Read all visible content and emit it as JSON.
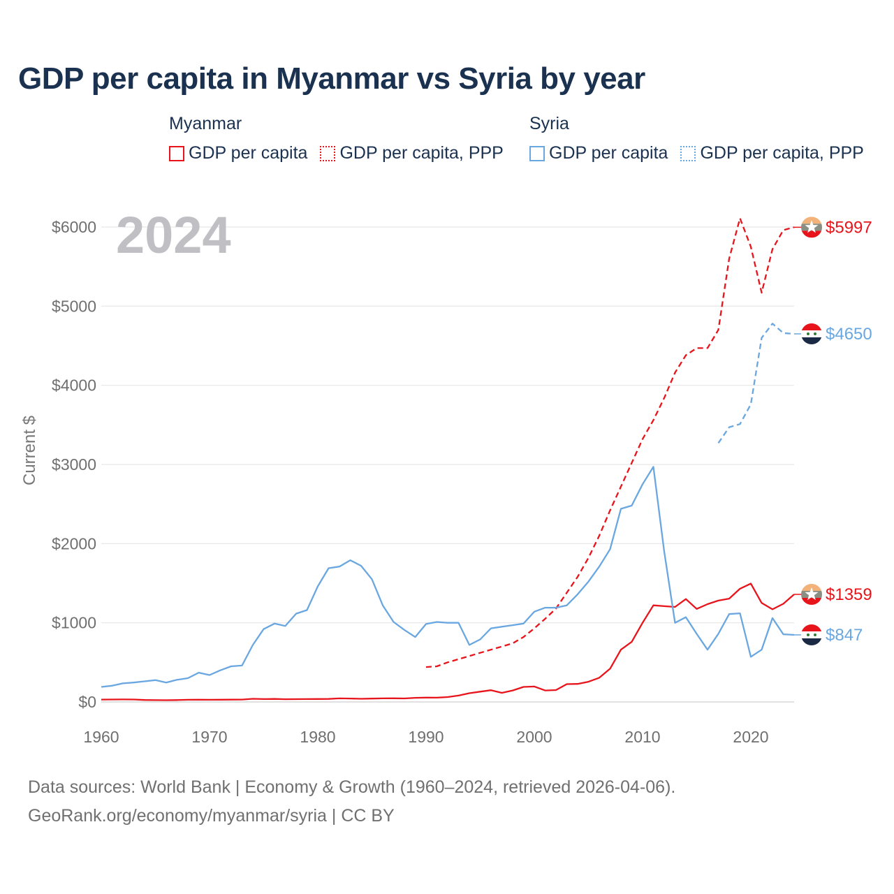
{
  "title": "GDP per capita in Myanmar vs Syria by year",
  "legend": {
    "groups": [
      {
        "name": "Myanmar",
        "items": [
          "GDP per capita",
          "GDP per capita, PPP"
        ]
      },
      {
        "name": "Syria",
        "items": [
          "GDP per capita",
          "GDP per capita, PPP"
        ]
      }
    ]
  },
  "colors": {
    "myanmar": "#e8141b",
    "syria": "#6aa7e0",
    "grid": "#e6e6e6",
    "year": "#bfbfc4"
  },
  "year_label": "2024",
  "footer": {
    "line1": "Data sources: World Bank | Economy & Growth (1960–2024, retrieved 2026-04-06).",
    "line2": "GeoRank.org/economy/myanmar/syria | CC BY"
  },
  "chart_data": {
    "type": "line",
    "ylabel": "Current $",
    "xlim": [
      1960,
      2024
    ],
    "ylim": [
      0,
      6000
    ],
    "x_ticks": [
      1960,
      1970,
      1980,
      1990,
      2000,
      2010,
      2020
    ],
    "y_ticks": [
      0,
      1000,
      2000,
      3000,
      4000,
      5000,
      6000
    ],
    "y_tick_labels": [
      "$0",
      "$1000",
      "$2000",
      "$3000",
      "$4000",
      "$5000",
      "$6000"
    ],
    "grid": true,
    "series": [
      {
        "name": "Myanmar GDP per capita",
        "country": "myanmar",
        "style": "solid",
        "x": [
          1960,
          1961,
          1962,
          1963,
          1964,
          1965,
          1966,
          1967,
          1968,
          1969,
          1970,
          1971,
          1972,
          1973,
          1974,
          1975,
          1976,
          1977,
          1978,
          1979,
          1980,
          1981,
          1982,
          1983,
          1984,
          1985,
          1986,
          1987,
          1988,
          1989,
          1990,
          1991,
          1992,
          1993,
          1994,
          1995,
          1996,
          1997,
          1998,
          1999,
          2000,
          2001,
          2002,
          2003,
          2004,
          2005,
          2006,
          2007,
          2008,
          2009,
          2010,
          2011,
          2012,
          2013,
          2014,
          2015,
          2016,
          2017,
          2018,
          2019,
          2020,
          2021,
          2022,
          2023,
          2024
        ],
        "values": [
          30,
          31,
          32,
          31,
          25,
          23,
          22,
          24,
          27,
          28,
          27,
          28,
          29,
          30,
          40,
          36,
          38,
          34,
          35,
          36,
          37,
          38,
          45,
          43,
          40,
          42,
          45,
          46,
          44,
          52,
          55,
          54,
          62,
          80,
          110,
          130,
          148,
          115,
          145,
          190,
          195,
          145,
          150,
          225,
          228,
          255,
          305,
          420,
          660,
          760,
          1000,
          1220,
          1210,
          1200,
          1300,
          1175,
          1235,
          1280,
          1305,
          1430,
          1495,
          1250,
          1170,
          1240,
          1359
        ],
        "end_label": "$1359"
      },
      {
        "name": "Myanmar GDP per capita, PPP",
        "country": "myanmar",
        "style": "dashed",
        "x": [
          1990,
          1991,
          1992,
          1993,
          1994,
          1995,
          1996,
          1997,
          1998,
          1999,
          2000,
          2001,
          2002,
          2003,
          2004,
          2005,
          2006,
          2007,
          2008,
          2009,
          2010,
          2011,
          2012,
          2013,
          2014,
          2015,
          2016,
          2017,
          2018,
          2019,
          2020,
          2021,
          2022,
          2023,
          2024
        ],
        "values": [
          440,
          450,
          500,
          540,
          580,
          620,
          660,
          700,
          740,
          820,
          930,
          1050,
          1180,
          1380,
          1580,
          1820,
          2100,
          2420,
          2720,
          3020,
          3320,
          3560,
          3840,
          4160,
          4380,
          4470,
          4470,
          4700,
          5600,
          6110,
          5750,
          5170,
          5720,
          5960,
          5997
        ],
        "end_label": "$5997"
      },
      {
        "name": "Syria GDP per capita",
        "country": "syria",
        "style": "solid",
        "x": [
          1960,
          1961,
          1962,
          1963,
          1964,
          1965,
          1966,
          1967,
          1968,
          1969,
          1970,
          1971,
          1972,
          1973,
          1974,
          1975,
          1976,
          1977,
          1978,
          1979,
          1980,
          1981,
          1982,
          1983,
          1984,
          1985,
          1986,
          1987,
          1988,
          1989,
          1990,
          1991,
          1992,
          1993,
          1994,
          1995,
          1996,
          1997,
          1998,
          1999,
          2000,
          2001,
          2002,
          2003,
          2004,
          2005,
          2006,
          2007,
          2008,
          2009,
          2010,
          2011,
          2012,
          2013,
          2014,
          2015,
          2016,
          2017,
          2018,
          2019,
          2020,
          2021,
          2022,
          2023,
          2024
        ],
        "values": [
          190,
          205,
          235,
          245,
          260,
          275,
          245,
          280,
          300,
          370,
          340,
          400,
          450,
          460,
          720,
          920,
          990,
          960,
          1115,
          1160,
          1460,
          1690,
          1710,
          1790,
          1720,
          1550,
          1220,
          1010,
          910,
          820,
          985,
          1010,
          1000,
          1000,
          720,
          790,
          930,
          950,
          970,
          990,
          1140,
          1190,
          1190,
          1220,
          1360,
          1520,
          1710,
          1930,
          2440,
          2480,
          2750,
          2970,
          1900,
          1000,
          1070,
          860,
          660,
          860,
          1110,
          1120,
          570,
          660,
          1060,
          855,
          847
        ],
        "end_label": "$847"
      },
      {
        "name": "Syria GDP per capita, PPP",
        "country": "syria",
        "style": "dashed",
        "x": [
          2017,
          2018,
          2019,
          2020,
          2021,
          2022,
          2023,
          2024
        ],
        "values": [
          3270,
          3470,
          3510,
          3760,
          4600,
          4780,
          4660,
          4650
        ],
        "end_label": "$4650"
      }
    ]
  }
}
